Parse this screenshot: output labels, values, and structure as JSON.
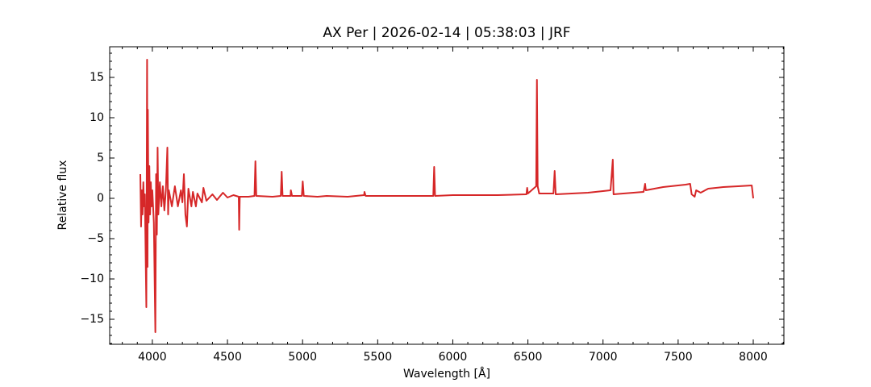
{
  "chart_data": {
    "type": "line",
    "title": "AX Per | 2026-02-14 | 05:38:03 | JRF",
    "xlabel": "Wavelength [Å]",
    "ylabel": "Relative flux",
    "xlim": [
      3716,
      8204
    ],
    "ylim": [
      -18.1,
      18.8
    ],
    "xticks": [
      4000,
      4500,
      5000,
      5500,
      6000,
      6500,
      7000,
      7500,
      8000
    ],
    "yticks": [
      {
        "value": -15,
        "label": "−15"
      },
      {
        "value": -10,
        "label": "−10"
      },
      {
        "value": -5,
        "label": "−5"
      },
      0,
      5,
      10,
      15
    ],
    "xminorticks": [
      3800,
      3900,
      4100,
      4200,
      4300,
      4400,
      4600,
      4700,
      4800,
      4900,
      5100,
      5200,
      5300,
      5400,
      5600,
      5700,
      5800,
      5900,
      6100,
      6200,
      6300,
      6400,
      6600,
      6700,
      6800,
      6900,
      7100,
      7200,
      7300,
      7400,
      7600,
      7700,
      7800,
      7900,
      8100,
      8200
    ],
    "yminorticks": [
      -18,
      -17,
      -16,
      -14,
      -13,
      -12,
      -11,
      -9,
      -8,
      -7,
      -6,
      -4,
      -3,
      -2,
      -1,
      1,
      2,
      3,
      4,
      6,
      7,
      8,
      9,
      11,
      12,
      13,
      14,
      16,
      17,
      18
    ],
    "x": [
      3920,
      3925,
      3930,
      3935,
      3940,
      3945,
      3950,
      3960,
      3965,
      3968,
      3970,
      3975,
      3980,
      3985,
      3990,
      3995,
      4000,
      4010,
      4020,
      4025,
      4030,
      4035,
      4040,
      4050,
      4060,
      4070,
      4080,
      4090,
      4100,
      4105,
      4110,
      4130,
      4150,
      4170,
      4190,
      4200,
      4210,
      4220,
      4230,
      4240,
      4260,
      4270,
      4290,
      4300,
      4330,
      4340,
      4360,
      4400,
      4430,
      4470,
      4500,
      4540,
      4575,
      4578,
      4582,
      4640,
      4680,
      4686,
      4692,
      4800,
      4855,
      4861,
      4867,
      4920,
      4922,
      4930,
      4995,
      5001,
      5008,
      5100,
      5160,
      5300,
      5410,
      5412,
      5420,
      5600,
      5870,
      5876,
      5882,
      6000,
      6300,
      6490,
      6495,
      6500,
      6555,
      6560,
      6565,
      6575,
      6670,
      6678,
      6685,
      6900,
      7050,
      7065,
      7070,
      7270,
      7280,
      7285,
      7400,
      7550,
      7580,
      7590,
      7610,
      7620,
      7650,
      7700,
      7800,
      7900,
      7990,
      8000
    ],
    "series": [
      {
        "name": "Relative flux",
        "color": "#d62728",
        "values": [
          3,
          -3.5,
          1,
          -2,
          2,
          -1,
          0.5,
          -13.5,
          17.2,
          -8.5,
          11,
          -3,
          4,
          -2,
          2,
          -1,
          1,
          -3,
          -16.6,
          3,
          -4.5,
          6.3,
          -2,
          2,
          -1,
          1.5,
          -1.5,
          1,
          6.3,
          -2,
          1,
          -1,
          1.5,
          -1,
          1,
          -0.5,
          3,
          -2,
          -3.5,
          1.2,
          -1,
          0.8,
          -1,
          0.6,
          -0.5,
          1.3,
          -0.3,
          0.5,
          -0.2,
          0.7,
          0.1,
          0.4,
          0.2,
          -3.9,
          0.2,
          0.2,
          0.3,
          4.6,
          0.3,
          0.2,
          0.3,
          3.3,
          0.3,
          0.3,
          1,
          0.3,
          0.3,
          2.1,
          0.3,
          0.2,
          0.3,
          0.2,
          0.4,
          0.8,
          0.3,
          0.3,
          0.3,
          3.9,
          0.3,
          0.4,
          0.4,
          0.5,
          1.3,
          0.6,
          1.5,
          14.7,
          1.5,
          0.6,
          0.6,
          3.4,
          0.5,
          0.7,
          1.0,
          4.8,
          0.5,
          0.8,
          1.8,
          1.0,
          1.4,
          1.7,
          1.8,
          0.5,
          0.2,
          1,
          0.7,
          1.2,
          1.4,
          1.5,
          1.6,
          0
        ]
      }
    ]
  }
}
